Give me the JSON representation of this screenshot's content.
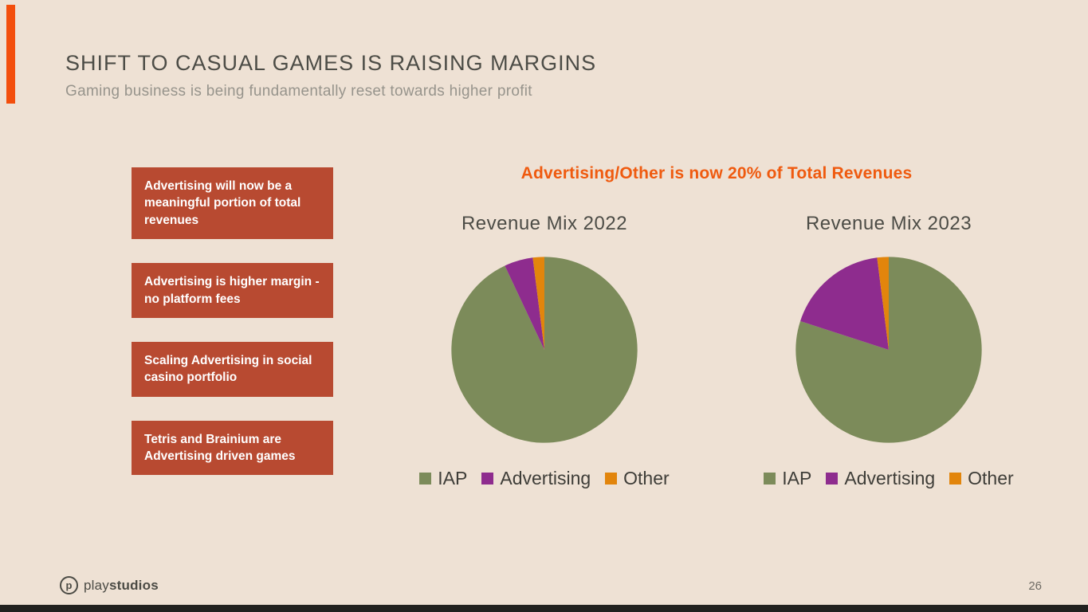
{
  "slide": {
    "title": "SHIFT TO CASUAL GAMES IS RAISING MARGINS",
    "subtitle": "Gaming business is being fundamentally reset towards higher profit",
    "page_number": "26"
  },
  "callouts": [
    {
      "text": "Advertising will now be a meaningful portion of total revenues"
    },
    {
      "text": "Advertising is higher margin - no platform fees"
    },
    {
      "text": "Scaling Advertising in social casino portfolio"
    },
    {
      "text": "Tetris and Brainium are Advertising driven games"
    }
  ],
  "headline": "Advertising/Other is now 20% of Total Revenues",
  "footer": {
    "logo_letter": "p",
    "logo_text_regular": "play",
    "logo_text_bold": "studios"
  },
  "colors": {
    "background": "#EEE1D4",
    "accent_orange": "#F34E0C",
    "callout_red": "#B84A31",
    "headline_orange": "#EF5A0F",
    "title_gray": "#4C4C46",
    "subtitle_gray": "#97948C"
  },
  "chart_data": [
    {
      "type": "pie",
      "title": "Revenue Mix 2022",
      "labels": [
        "IAP",
        "Advertising",
        "Other"
      ],
      "values": [
        93,
        5,
        2
      ],
      "colors": [
        "#7C8B5A",
        "#8E2C8E",
        "#E2850C"
      ],
      "legend_position": "bottom",
      "start_angle": "top",
      "direction": "clockwise"
    },
    {
      "type": "pie",
      "title": "Revenue Mix 2023",
      "labels": [
        "IAP",
        "Advertising",
        "Other"
      ],
      "values": [
        80,
        18,
        2
      ],
      "colors": [
        "#7C8B5A",
        "#8E2C8E",
        "#E2850C"
      ],
      "legend_position": "bottom",
      "start_angle": "top",
      "direction": "clockwise"
    }
  ]
}
